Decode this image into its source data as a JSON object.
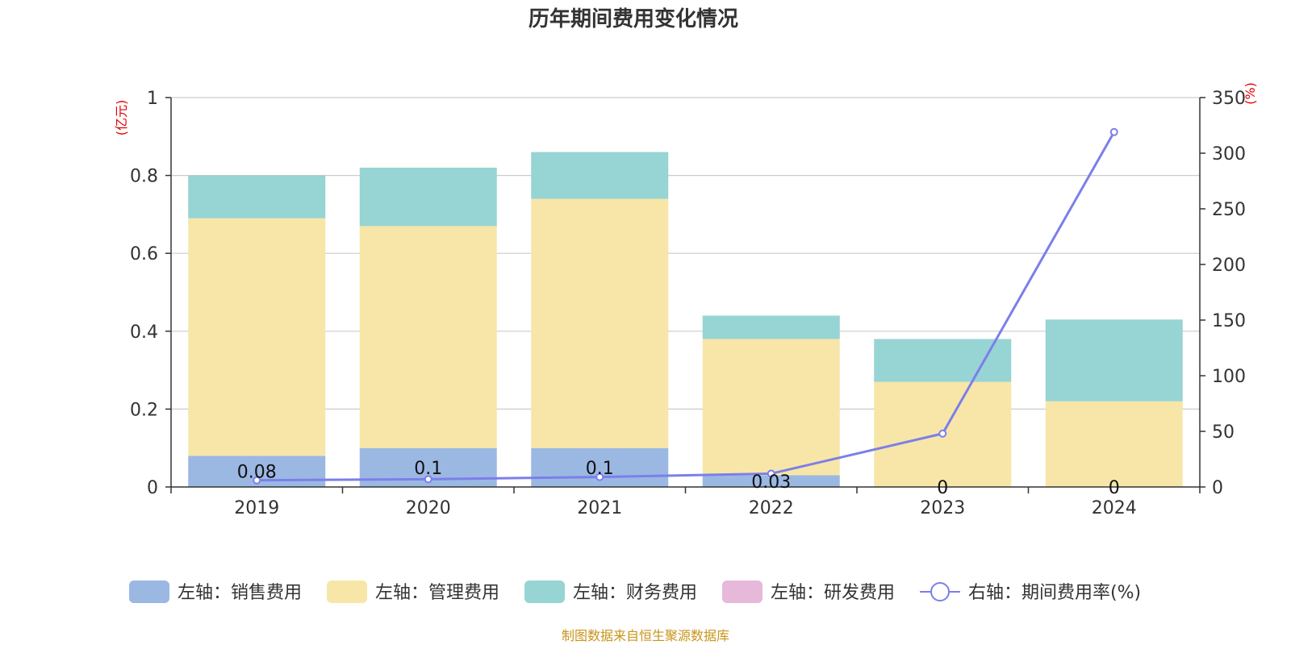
{
  "chart_data": {
    "type": "bar",
    "title": "历年期间费用变化情况",
    "categories": [
      "2019",
      "2020",
      "2021",
      "2022",
      "2023",
      "2024"
    ],
    "y_left": {
      "unit_label": "(亿元)",
      "ylim": [
        0,
        1
      ],
      "ticks": [
        "0",
        "0.2",
        "0.4",
        "0.6",
        "0.8",
        "1"
      ]
    },
    "y_right": {
      "unit_label": "(%)",
      "ylim": [
        0,
        350
      ],
      "ticks": [
        "0",
        "50",
        "100",
        "150",
        "200",
        "250",
        "300",
        "350"
      ]
    },
    "series": [
      {
        "name": "左轴：销售费用",
        "kind": "bar",
        "axis": "left",
        "color": "#9bb8e3",
        "values": [
          0.08,
          0.1,
          0.1,
          0.03,
          0,
          0
        ],
        "labels": [
          "0.08",
          "0.1",
          "0.1",
          "0.03",
          "0",
          "0"
        ]
      },
      {
        "name": "左轴：管理费用",
        "kind": "bar",
        "axis": "left",
        "color": "#f7e6a8",
        "values": [
          0.61,
          0.57,
          0.64,
          0.35,
          0.27,
          0.22
        ]
      },
      {
        "name": "左轴：财务费用",
        "kind": "bar",
        "axis": "left",
        "color": "#97d4d4",
        "values": [
          0.11,
          0.15,
          0.12,
          0.06,
          0.11,
          0.21
        ]
      },
      {
        "name": "左轴：研发费用",
        "kind": "bar",
        "axis": "left",
        "color": "#e6b8da",
        "values": [
          0,
          0,
          0,
          0,
          0,
          0
        ]
      },
      {
        "name": "右轴：期间费用率(%)",
        "kind": "line",
        "axis": "right",
        "color": "#7b7fea",
        "values": [
          6,
          7,
          9,
          12,
          48,
          319
        ]
      }
    ],
    "grid": true,
    "legend": "bottom",
    "source": "制图数据来自恒生聚源数据库"
  }
}
